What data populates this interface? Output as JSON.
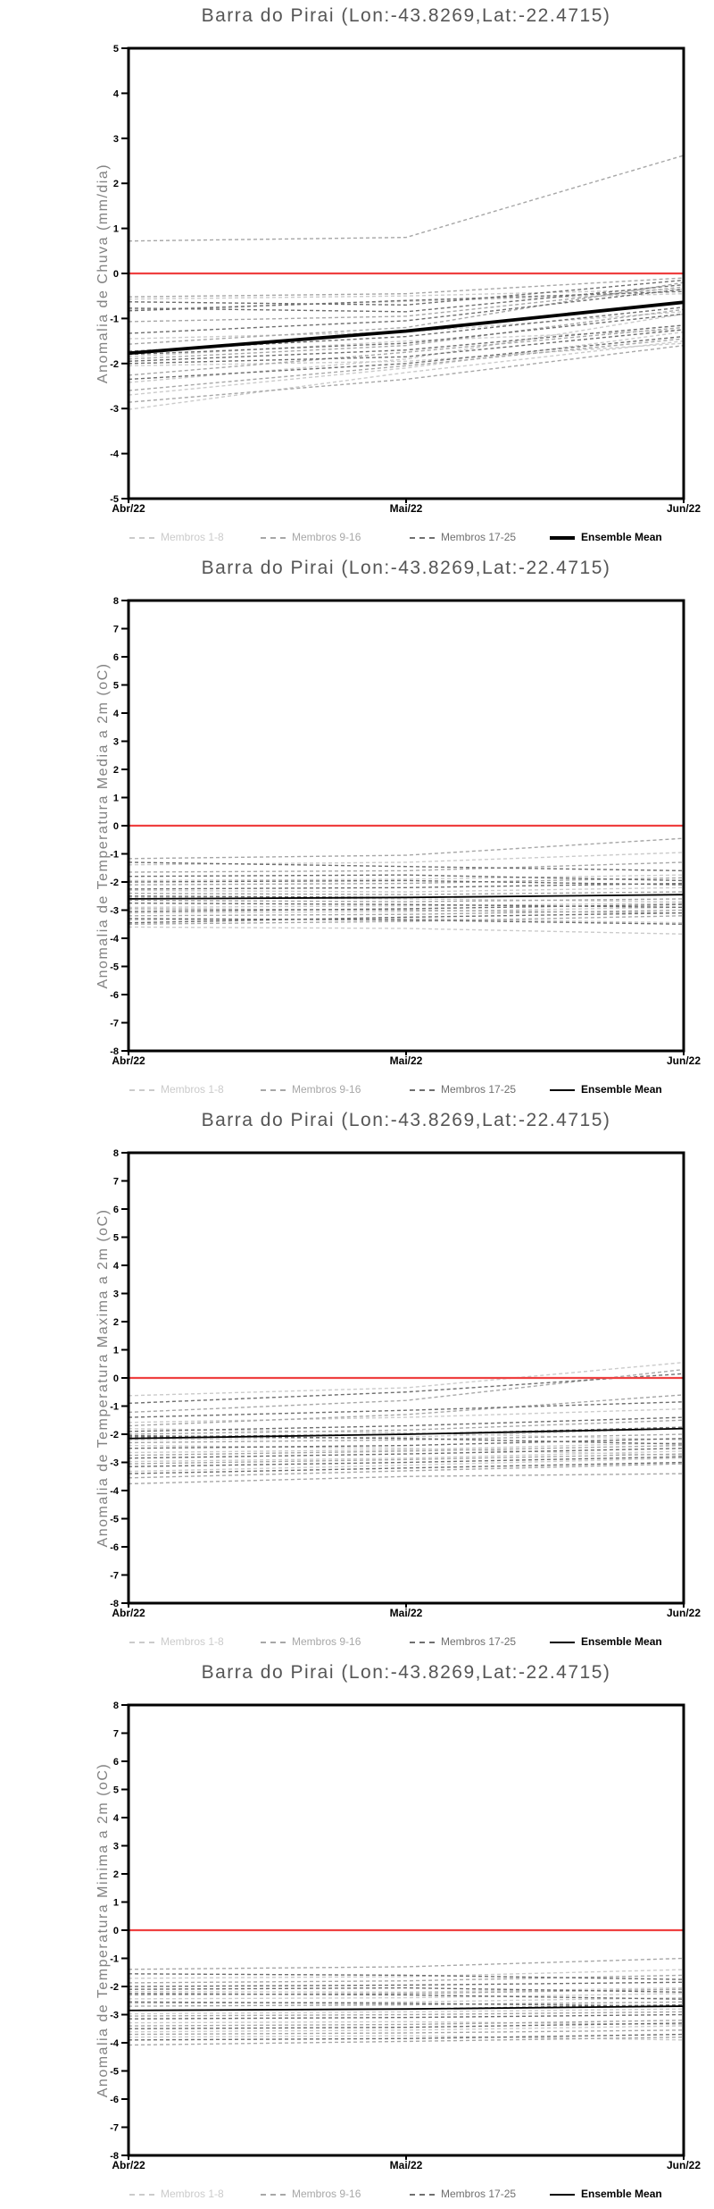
{
  "colors": {
    "group1": "#cbcbcb",
    "group2": "#a7a7a7",
    "group3": "#6f6f6f",
    "mean": "#000000",
    "zero_line": "#ef4040",
    "title": "#555555",
    "ylabel": "#828282"
  },
  "chart_data": [
    {
      "type": "line",
      "title": "Barra do Pirai (Lon:-43.8269,Lat:-22.4715)",
      "ylabel": "Anomalia de Chuva (mm/dia)",
      "x_labels": [
        "Abr/22",
        "Mai/22",
        "Jun/22"
      ],
      "ylim": [
        -5,
        5
      ],
      "yticks": [
        5,
        4,
        3,
        2,
        1,
        0,
        -1,
        -2,
        -3,
        -4,
        -5
      ],
      "zero_line": 0,
      "legend": [
        "Membros 1-8",
        "Membros 9-16",
        "Membros 17-25",
        "Ensemble Mean"
      ],
      "mean": {
        "label": "Ensemble Mean",
        "values": [
          -1.77,
          -1.28,
          -0.64
        ],
        "thick": true
      },
      "members": [
        [
          1,
          -0.57,
          -0.5,
          -0.35
        ],
        [
          1,
          -0.8,
          -0.62,
          -0.45
        ],
        [
          1,
          -1.45,
          -1.3,
          -0.85
        ],
        [
          1,
          -1.85,
          -1.5,
          -1.25
        ],
        [
          1,
          -2.05,
          -1.95,
          -1.55
        ],
        [
          1,
          -2.42,
          -1.9,
          -0.9
        ],
        [
          1,
          -2.7,
          -2.1,
          -1.3
        ],
        [
          1,
          -3.02,
          -2.2,
          -1.5
        ],
        [
          2,
          0.72,
          0.8,
          2.62
        ],
        [
          2,
          -0.52,
          -0.45,
          -0.1
        ],
        [
          2,
          -1.07,
          -0.95,
          -0.3
        ],
        [
          2,
          -1.57,
          -1.2,
          -0.2
        ],
        [
          2,
          -1.9,
          -1.6,
          -0.8
        ],
        [
          2,
          -2.26,
          -1.75,
          -1.2
        ],
        [
          2,
          -2.6,
          -2.05,
          -1.45
        ],
        [
          2,
          -2.86,
          -2.35,
          -1.6
        ],
        [
          3,
          -0.63,
          -0.7,
          -0.15
        ],
        [
          3,
          -0.77,
          -0.85,
          -0.25
        ],
        [
          3,
          -0.83,
          -0.6,
          -0.4
        ],
        [
          3,
          -1.33,
          -1.05,
          -0.35
        ],
        [
          3,
          -1.73,
          -1.4,
          -0.75
        ],
        [
          3,
          -1.8,
          -1.55,
          -0.9
        ],
        [
          3,
          -1.95,
          -1.7,
          -1.15
        ],
        [
          3,
          -2.0,
          -1.85,
          -1.25
        ],
        [
          3,
          -2.35,
          -2.0,
          -1.4
        ]
      ]
    },
    {
      "type": "line",
      "title": "Barra do Pirai (Lon:-43.8269,Lat:-22.4715)",
      "ylabel": "Anomalia de Temperatura Media a 2m (oC)",
      "x_labels": [
        "Abr/22",
        "Mai/22",
        "Jun/22"
      ],
      "ylim": [
        -8,
        8
      ],
      "yticks": [
        8,
        7,
        6,
        5,
        4,
        3,
        2,
        1,
        0,
        -1,
        -2,
        -3,
        -4,
        -5,
        -6,
        -7,
        -8
      ],
      "zero_line": 0,
      "legend": [
        "Membros 1-8",
        "Membros 9-16",
        "Membros 17-25",
        "Ensemble Mean"
      ],
      "mean": {
        "label": "Ensemble Mean",
        "values": [
          -2.6,
          -2.55,
          -2.45
        ],
        "thick": false
      },
      "members": [
        [
          1,
          -1.39,
          -1.3,
          -0.95
        ],
        [
          1,
          -1.95,
          -1.9,
          -1.75
        ],
        [
          1,
          -2.3,
          -2.35,
          -2.2
        ],
        [
          1,
          -2.55,
          -2.6,
          -2.7
        ],
        [
          1,
          -2.9,
          -2.85,
          -2.75
        ],
        [
          1,
          -3.1,
          -3.05,
          -2.9
        ],
        [
          1,
          -3.35,
          -3.3,
          -3.45
        ],
        [
          1,
          -3.6,
          -3.65,
          -3.85
        ],
        [
          2,
          -1.17,
          -1.05,
          -0.45
        ],
        [
          2,
          -1.65,
          -1.6,
          -1.3
        ],
        [
          2,
          -2.1,
          -2.05,
          -1.85
        ],
        [
          2,
          -2.4,
          -2.45,
          -2.35
        ],
        [
          2,
          -2.65,
          -2.7,
          -2.6
        ],
        [
          2,
          -2.95,
          -3.0,
          -3.1
        ],
        [
          2,
          -3.2,
          -3.15,
          -3.0
        ],
        [
          2,
          -3.5,
          -3.4,
          -3.2
        ],
        [
          3,
          -1.3,
          -1.45,
          -1.6
        ],
        [
          3,
          -1.8,
          -1.75,
          -1.95
        ],
        [
          3,
          -2.0,
          -1.95,
          -2.1
        ],
        [
          3,
          -2.25,
          -2.2,
          -2.05
        ],
        [
          3,
          -2.5,
          -2.55,
          -2.45
        ],
        [
          3,
          -2.75,
          -2.8,
          -2.9
        ],
        [
          3,
          -3.05,
          -2.95,
          -2.8
        ],
        [
          3,
          -3.3,
          -3.35,
          -3.5
        ],
        [
          3,
          -3.45,
          -3.25,
          -3.1
        ]
      ]
    },
    {
      "type": "line",
      "title": "Barra do Pirai (Lon:-43.8269,Lat:-22.4715)",
      "ylabel": "Anomalia de Temperatura Maxima a 2m (oC)",
      "x_labels": [
        "Abr/22",
        "Mai/22",
        "Jun/22"
      ],
      "ylim": [
        -8,
        8
      ],
      "yticks": [
        8,
        7,
        6,
        5,
        4,
        3,
        2,
        1,
        0,
        -1,
        -2,
        -3,
        -4,
        -5,
        -6,
        -7,
        -8
      ],
      "zero_line": 0,
      "legend": [
        "Membros 1-8",
        "Membros 9-16",
        "Membros 17-25",
        "Ensemble Mean"
      ],
      "mean": {
        "label": "Ensemble Mean",
        "values": [
          -2.15,
          -2.0,
          -1.8
        ],
        "thick": false
      },
      "members": [
        [
          1,
          -0.63,
          -0.35,
          0.55
        ],
        [
          1,
          -1.58,
          -1.4,
          -1.1
        ],
        [
          1,
          -2.2,
          -2.1,
          -1.8
        ],
        [
          1,
          -2.65,
          -2.55,
          -2.3
        ],
        [
          1,
          -2.97,
          -2.85,
          -2.6
        ],
        [
          1,
          -3.32,
          -3.1,
          -2.85
        ],
        [
          1,
          -1.8,
          -1.95,
          -2.2
        ],
        [
          1,
          -2.4,
          -2.5,
          -2.75
        ],
        [
          2,
          -1.22,
          -0.8,
          0.3
        ],
        [
          2,
          -1.7,
          -1.3,
          -0.6
        ],
        [
          2,
          -2.0,
          -1.85,
          -1.5
        ],
        [
          2,
          -2.3,
          -2.2,
          -2.0
        ],
        [
          2,
          -2.75,
          -2.6,
          -2.4
        ],
        [
          2,
          -3.05,
          -2.9,
          -2.7
        ],
        [
          2,
          -3.55,
          -3.3,
          -3.05
        ],
        [
          2,
          -3.76,
          -3.5,
          -3.4
        ],
        [
          3,
          -0.9,
          -0.5,
          0.15
        ],
        [
          3,
          -1.4,
          -1.15,
          -0.85
        ],
        [
          3,
          -1.9,
          -1.7,
          -1.4
        ],
        [
          3,
          -2.1,
          -2.0,
          -1.75
        ],
        [
          3,
          -2.5,
          -2.4,
          -2.15
        ],
        [
          3,
          -2.85,
          -2.7,
          -2.5
        ],
        [
          3,
          -3.15,
          -3.0,
          -2.8
        ],
        [
          3,
          -3.4,
          -3.2,
          -3.0
        ],
        [
          3,
          -2.05,
          -2.15,
          -2.35
        ]
      ]
    },
    {
      "type": "line",
      "title": "Barra do Pirai (Lon:-43.8269,Lat:-22.4715)",
      "ylabel": "Anomalia de Temperatura Minima a 2m (oC)",
      "x_labels": [
        "Abr/22",
        "Mai/22",
        "Jun/22"
      ],
      "ylim": [
        -8,
        8
      ],
      "yticks": [
        8,
        7,
        6,
        5,
        4,
        3,
        2,
        1,
        0,
        -1,
        -2,
        -3,
        -4,
        -5,
        -6,
        -7,
        -8
      ],
      "zero_line": 0,
      "legend": [
        "Membros 1-8",
        "Membros 9-16",
        "Membros 17-25",
        "Ensemble Mean"
      ],
      "mean": {
        "label": "Ensemble Mean",
        "values": [
          -2.85,
          -2.8,
          -2.7
        ],
        "thick": false
      },
      "members": [
        [
          1,
          -1.71,
          -1.65,
          -1.4
        ],
        [
          1,
          -2.18,
          -2.2,
          -2.05
        ],
        [
          1,
          -2.6,
          -2.55,
          -2.4
        ],
        [
          1,
          -2.97,
          -2.9,
          -2.8
        ],
        [
          1,
          -3.29,
          -3.25,
          -3.35
        ],
        [
          1,
          -3.61,
          -3.55,
          -3.4
        ],
        [
          1,
          -3.8,
          -3.75,
          -3.9
        ],
        [
          1,
          -2.44,
          -2.4,
          -2.25
        ],
        [
          2,
          -1.39,
          -1.3,
          -1.0
        ],
        [
          2,
          -1.87,
          -1.8,
          -1.6
        ],
        [
          2,
          -2.3,
          -2.25,
          -2.1
        ],
        [
          2,
          -2.7,
          -2.65,
          -2.55
        ],
        [
          2,
          -3.05,
          -3.0,
          -2.9
        ],
        [
          2,
          -3.4,
          -3.35,
          -3.2
        ],
        [
          2,
          -3.7,
          -3.65,
          -3.55
        ],
        [
          2,
          -4.08,
          -3.95,
          -3.8
        ],
        [
          3,
          -1.55,
          -1.6,
          -1.75
        ],
        [
          3,
          -2.0,
          -1.95,
          -1.85
        ],
        [
          3,
          -2.25,
          -2.3,
          -2.45
        ],
        [
          3,
          -2.55,
          -2.6,
          -2.7
        ],
        [
          3,
          -2.85,
          -2.8,
          -2.65
        ],
        [
          3,
          -3.15,
          -3.1,
          -3.0
        ],
        [
          3,
          -3.5,
          -3.45,
          -3.3
        ],
        [
          3,
          -3.9,
          -3.85,
          -3.7
        ],
        [
          3,
          -2.1,
          -2.05,
          -2.2
        ]
      ]
    }
  ]
}
